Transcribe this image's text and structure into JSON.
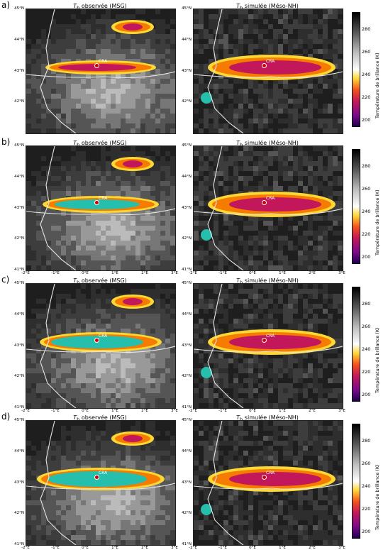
{
  "chart_data": {
    "type": "heatmap",
    "row_labels": [
      "a)",
      "b)",
      "c)",
      "d)"
    ],
    "panel_titles": {
      "observed": "T_b observée (MSG)",
      "simulated": "T_b simulée (Méso-NH)"
    },
    "observed_title_parts": {
      "sym": "T",
      "sub": "b",
      "rest": " observée (MSG)"
    },
    "simulated_title_parts": {
      "sym": "T",
      "sub": "b",
      "rest": " simulée (Méso-NH)"
    },
    "lat_ticks": [
      "45°N",
      "44°N",
      "43°N",
      "42°N",
      "41°N"
    ],
    "lon_ticks": [
      "-2°E",
      "-1°E",
      "0°E",
      "1°E",
      "2°E",
      "3°E"
    ],
    "station_label": "CRA",
    "colorbar": {
      "label": "Température de brillance (K)",
      "ticks": [
        "280",
        "260",
        "240",
        "220",
        "200"
      ],
      "range": [
        195,
        295
      ]
    }
  }
}
